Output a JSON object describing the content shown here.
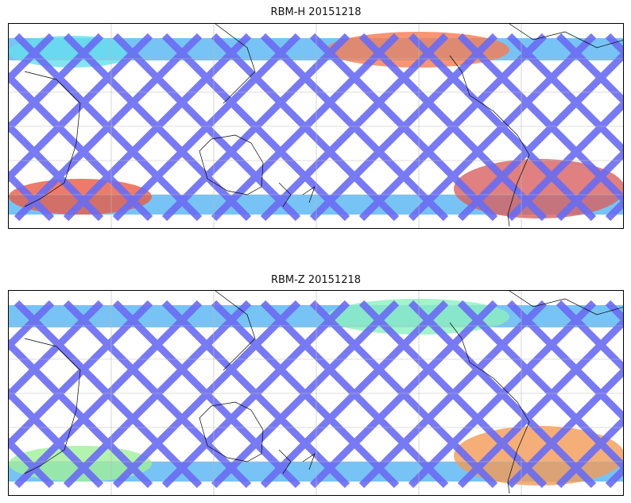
{
  "panels": [
    {
      "title": "RBM-H 20151218",
      "hotspots": [
        {
          "zone": "north-left",
          "color": "#66ddee"
        },
        {
          "zone": "north-mid",
          "color": "#f77a50"
        },
        {
          "zone": "south-left",
          "color": "#e85a45"
        },
        {
          "zone": "south-right",
          "color": "#d86060"
        }
      ]
    },
    {
      "title": "RBM-Z 20151218",
      "hotspots": [
        {
          "zone": "north-mid",
          "color": "#8cf0c0"
        },
        {
          "zone": "south-left",
          "color": "#9ff09a"
        },
        {
          "zone": "south-right",
          "color": "#f39a55"
        }
      ]
    }
  ],
  "colors": {
    "track": "#6a6cf2",
    "track_alt": "#5a9ff5",
    "band": "#5fb8f5",
    "grid": "#bbbbbb",
    "coast": "#000000"
  }
}
